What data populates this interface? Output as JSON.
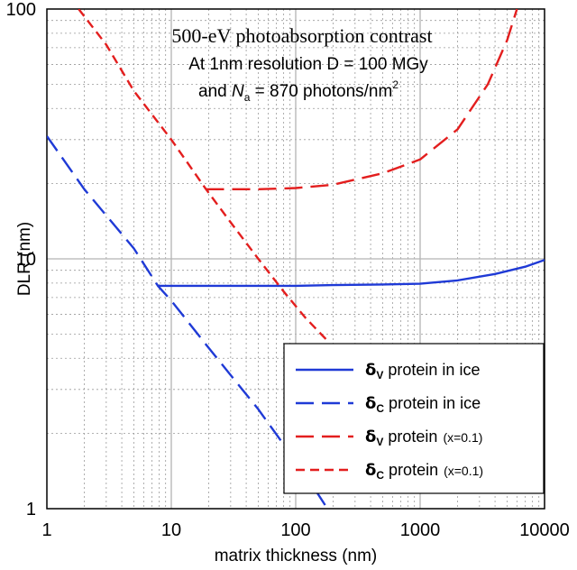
{
  "chart_data": {
    "type": "line",
    "title_lines": [
      "500-eV photoabsorption contrast",
      "At 1nm resolution D = 100 MGy"
    ],
    "title_line3": {
      "prefix": "and ",
      "var": "N",
      "sub": "a",
      "suffix": " = 870 photons/nm",
      "sup": "2"
    },
    "xlabel": "matrix thickness (nm)",
    "ylabel": "DLR (nm)",
    "x_scale": "log",
    "y_scale": "log",
    "xlim": [
      1,
      10000
    ],
    "ylim": [
      1,
      100
    ],
    "x_ticks": [
      "1",
      "10",
      "100",
      "1000",
      "10000"
    ],
    "y_ticks": [
      "1",
      "10",
      "100"
    ],
    "grid": true,
    "legend_position": "lower-right",
    "series": [
      {
        "legend": {
          "delta": "δ",
          "sub": "V",
          "text": " protein in ice",
          "extra": ""
        },
        "color": "#1f3ad6",
        "dash": "solid",
        "points": [
          [
            7.8,
            7.8
          ],
          [
            20,
            7.8
          ],
          [
            50,
            7.8
          ],
          [
            100,
            7.8
          ],
          [
            200,
            7.85
          ],
          [
            500,
            7.9
          ],
          [
            1000,
            7.95
          ],
          [
            2000,
            8.2
          ],
          [
            4000,
            8.7
          ],
          [
            7000,
            9.3
          ],
          [
            10000,
            9.9
          ]
        ]
      },
      {
        "legend": {
          "delta": "δ",
          "sub": "C",
          "text": " protein in ice",
          "extra": ""
        },
        "color": "#1f3ad6",
        "dash": "long",
        "points": [
          [
            1,
            31
          ],
          [
            2,
            19
          ],
          [
            5,
            11
          ],
          [
            7.8,
            7.8
          ],
          [
            10,
            6.8
          ],
          [
            20,
            4.4
          ],
          [
            50,
            2.5
          ],
          [
            100,
            1.55
          ],
          [
            150,
            1.15
          ],
          [
            180,
            1.0
          ]
        ]
      },
      {
        "legend": {
          "delta": "δ",
          "sub": "V",
          "text": " protein",
          "extra": "(x=0.1)"
        },
        "color": "#e31e1e",
        "dash": "long",
        "points": [
          [
            19,
            19
          ],
          [
            50,
            19
          ],
          [
            100,
            19.2
          ],
          [
            200,
            19.8
          ],
          [
            500,
            22
          ],
          [
            1000,
            25
          ],
          [
            2000,
            33
          ],
          [
            3500,
            50
          ],
          [
            5000,
            75
          ],
          [
            6000,
            100
          ]
        ]
      },
      {
        "legend": {
          "delta": "δ",
          "sub": "C",
          "text": " protein",
          "extra": "(x=0.1)"
        },
        "color": "#e31e1e",
        "dash": "short",
        "points": [
          [
            1.8,
            100
          ],
          [
            3,
            72
          ],
          [
            5,
            47
          ],
          [
            10,
            30
          ],
          [
            19,
            19
          ],
          [
            30,
            14
          ],
          [
            50,
            10
          ],
          [
            80,
            7.4
          ],
          [
            120,
            5.8
          ],
          [
            180,
            4.7
          ]
        ]
      }
    ]
  }
}
